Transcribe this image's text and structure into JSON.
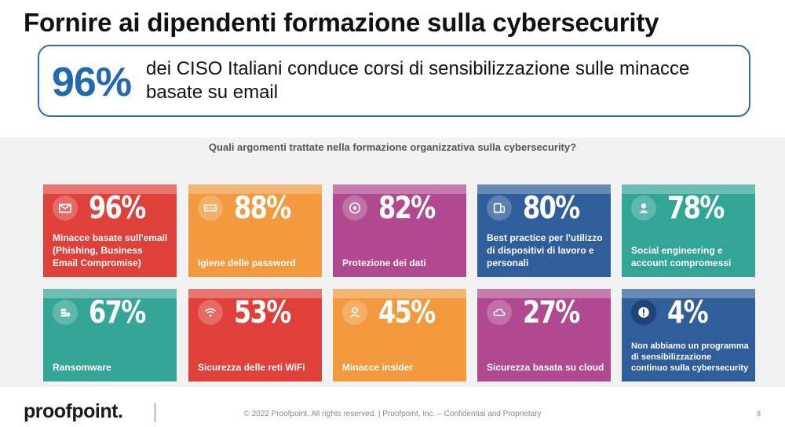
{
  "slide": {
    "title": "Fornire ai dipendenti formazione sulla cybersecurity",
    "hero": {
      "value": "96%",
      "text": "dei CISO Italiani conduce corsi di sensibilizzazione sulle minacce basate su email",
      "accent_color": "#2468b4"
    },
    "question": "Quali argomenti trattate nella formazione organizzativa sulla cybersecurity?",
    "tiles": [
      {
        "value": "96%",
        "label": "Minacce basate sull'email (Phishing, Business Email Compromise)",
        "icon": "envelope-icon",
        "color": "#e0403a"
      },
      {
        "value": "88%",
        "label": "Igiene delle password",
        "icon": "password-icon",
        "color": "#f39a3e"
      },
      {
        "value": "82%",
        "label": "Protezione dei dati",
        "icon": "data-protection-icon",
        "color": "#b0498f"
      },
      {
        "value": "80%",
        "label": "Best practice per l'utilizzo di dispositivi di lavoro e personali",
        "icon": "devices-icon",
        "color": "#2f5e9b"
      },
      {
        "value": "78%",
        "label": "Social engineering e account compromessi",
        "icon": "user-icon",
        "color": "#33a597"
      },
      {
        "value": "67%",
        "label": "Ransomware",
        "icon": "coins-icon",
        "color": "#34a597"
      },
      {
        "value": "53%",
        "label": "Sicurezza delle reti WiFi",
        "icon": "wifi-icon",
        "color": "#e0403a"
      },
      {
        "value": "45%",
        "label": "Minacce insider",
        "icon": "insider-icon",
        "color": "#f39a3e"
      },
      {
        "value": "27%",
        "label": "Sicurezza basata su cloud",
        "icon": "cloud-icon",
        "color": "#b0498f"
      },
      {
        "value": "4%",
        "label": "Non abbiamo un programma di sensibilizzazione continuo sulla cybersecurity",
        "icon": "alert-icon",
        "color": "#2f5e9b"
      }
    ]
  },
  "footer": {
    "logo": "proofpoint.",
    "copyright": "© 2022 Proofpoint. All rights reserved.  |  Proofpoint, Inc. – Confidential and Proprietary",
    "page_number": "8"
  }
}
